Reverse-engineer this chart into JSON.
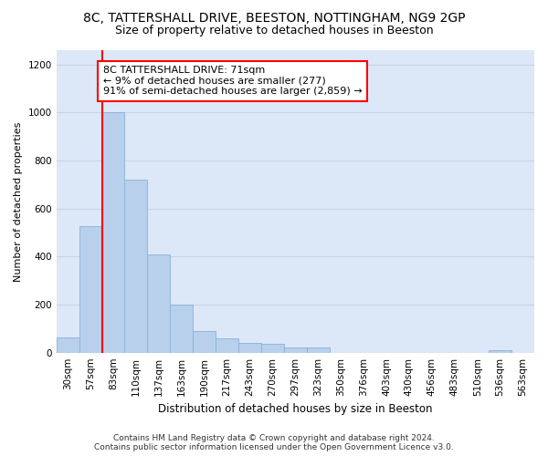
{
  "title": "8C, TATTERSHALL DRIVE, BEESTON, NOTTINGHAM, NG9 2GP",
  "subtitle": "Size of property relative to detached houses in Beeston",
  "xlabel": "Distribution of detached houses by size in Beeston",
  "ylabel": "Number of detached properties",
  "footer_line1": "Contains HM Land Registry data © Crown copyright and database right 2024.",
  "footer_line2": "Contains public sector information licensed under the Open Government Licence v3.0.",
  "bin_labels": [
    "30sqm",
    "57sqm",
    "83sqm",
    "110sqm",
    "137sqm",
    "163sqm",
    "190sqm",
    "217sqm",
    "243sqm",
    "270sqm",
    "297sqm",
    "323sqm",
    "350sqm",
    "376sqm",
    "403sqm",
    "430sqm",
    "456sqm",
    "483sqm",
    "510sqm",
    "536sqm",
    "563sqm"
  ],
  "bar_values": [
    65,
    525,
    1000,
    720,
    410,
    200,
    90,
    60,
    40,
    35,
    20,
    20,
    0,
    0,
    0,
    0,
    0,
    0,
    0,
    10,
    0
  ],
  "bar_color": "#b8d0eb",
  "bar_edge_color": "#8ab0d8",
  "grid_color": "#c8d4e8",
  "background_color": "#dce8f8",
  "vline_color": "red",
  "annotation_text": "8C TATTERSHALL DRIVE: 71sqm\n← 9% of detached houses are smaller (277)\n91% of semi-detached houses are larger (2,859) →",
  "annotation_box_color": "white",
  "annotation_box_edge_color": "red",
  "ylim": [
    0,
    1260
  ],
  "yticks": [
    0,
    200,
    400,
    600,
    800,
    1000,
    1200
  ],
  "title_fontsize": 10,
  "subtitle_fontsize": 9,
  "annot_fontsize": 8,
  "ylabel_fontsize": 8,
  "xlabel_fontsize": 8.5,
  "tick_fontsize": 7.5,
  "footer_fontsize": 6.5
}
